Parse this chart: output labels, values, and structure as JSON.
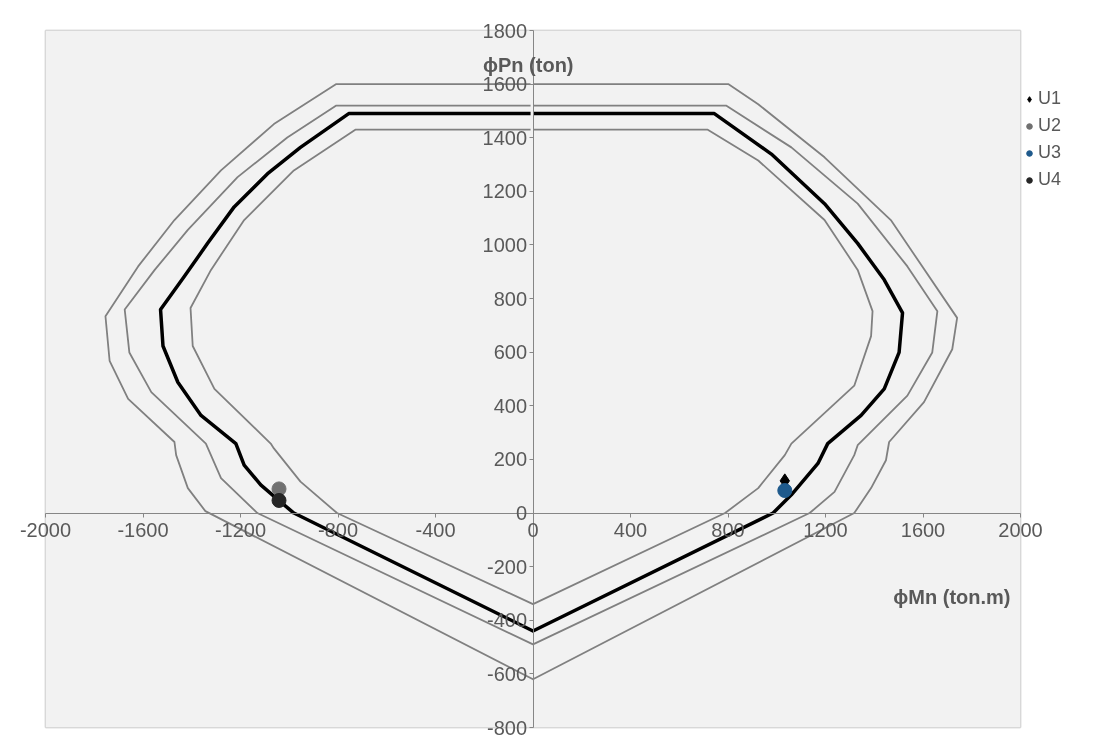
{
  "chart_data": {
    "type": "line",
    "xlabel": "ϕMn (ton.m)",
    "ylabel": "ϕPn (ton)",
    "xlim": [
      -2000,
      2000
    ],
    "ylim": [
      -800,
      1800
    ],
    "xticks": [
      -2000,
      -1600,
      -1200,
      -800,
      -400,
      0,
      400,
      800,
      1200,
      1600,
      2000
    ],
    "yticks": [
      -800,
      -600,
      -400,
      -200,
      0,
      200,
      400,
      600,
      800,
      1000,
      1200,
      1400,
      1600,
      1800
    ],
    "grid": true,
    "legend": "right",
    "line_style": "solid",
    "series": [
      {
        "color": "#808080",
        "x": [
          0,
          801,
          924,
          1196,
          1468,
          1740,
          1720,
          1604,
          1461,
          1448,
          1387,
          1318,
          0,
          -1344,
          -1416,
          -1464,
          -1471,
          -1661,
          -1737,
          -1754,
          -1620,
          -1471,
          -1280,
          -1063,
          -807,
          -10
        ],
        "values": [
          1600,
          1600,
          1525,
          1327,
          1093,
          728,
          611,
          414,
          265,
          197,
          93,
          0,
          -620,
          7,
          93,
          216,
          265,
          426,
          568,
          734,
          920,
          1093,
          1278,
          1451,
          1600,
          1600
        ]
      },
      {
        "color": "#808080",
        "x": [
          0,
          792,
          1060,
          1332,
          1536,
          1659,
          1638,
          1536,
          1332,
          1318,
          1237,
          1135,
          0,
          -1131,
          -1280,
          -1342,
          -1566,
          -1656,
          -1675,
          -1552,
          -1416,
          -1212,
          -1008,
          -807,
          -10
        ],
        "values": [
          1520,
          1520,
          1364,
          1154,
          920,
          753,
          599,
          438,
          253,
          216,
          79,
          0,
          -490,
          0,
          130,
          259,
          451,
          599,
          759,
          907,
          1056,
          1253,
          1401,
          1520,
          1520
        ]
      },
      {
        "color": "#000000",
        "x": [
          0,
          744,
          978,
          1196,
          1332,
          1441,
          1516,
          1502,
          1441,
          1346,
          1209,
          1169,
          1060,
          985,
          0,
          -981,
          -1042,
          -1117,
          -1185,
          -1219,
          -1362,
          -1457,
          -1518,
          -1528,
          -1430,
          -1335,
          -1226,
          -1090,
          -954,
          -756,
          -10
        ],
        "values": [
          1490,
          1490,
          1339,
          1154,
          1006,
          870,
          747,
          599,
          463,
          364,
          259,
          185,
          68,
          0,
          -440,
          0,
          46,
          105,
          179,
          259,
          364,
          488,
          623,
          759,
          883,
          1006,
          1142,
          1265,
          1364,
          1490,
          1490
        ]
      },
      {
        "color": "#808080",
        "x": [
          0,
          717,
          924,
          1196,
          1332,
          1393,
          1387,
          1318,
          1060,
          1033,
          924,
          788,
          0,
          -804,
          -954,
          -1063,
          -1076,
          -1307,
          -1396,
          -1405,
          -1321,
          -1185,
          -981,
          -729,
          -10
        ],
        "values": [
          1430,
          1430,
          1315,
          1093,
          907,
          753,
          660,
          475,
          259,
          216,
          93,
          0,
          -340,
          0,
          117,
          241,
          259,
          463,
          623,
          765,
          907,
          1093,
          1278,
          1430,
          1430
        ]
      },
      {
        "type": "scatter",
        "name": "U1",
        "color": "#000000",
        "marker": "diamond",
        "x": [
          1033
        ],
        "values": [
          120
        ]
      },
      {
        "type": "scatter",
        "name": "U2",
        "color": "#707070",
        "marker": "circle",
        "x": [
          -1042
        ],
        "values": [
          90
        ]
      },
      {
        "type": "scatter",
        "name": "U3",
        "color": "#1f5a8c",
        "marker": "circle",
        "x": [
          1033
        ],
        "values": [
          84
        ]
      },
      {
        "type": "scatter",
        "name": "U4",
        "color": "#262626",
        "marker": "circle",
        "x": [
          -1042
        ],
        "values": [
          47
        ]
      }
    ]
  }
}
